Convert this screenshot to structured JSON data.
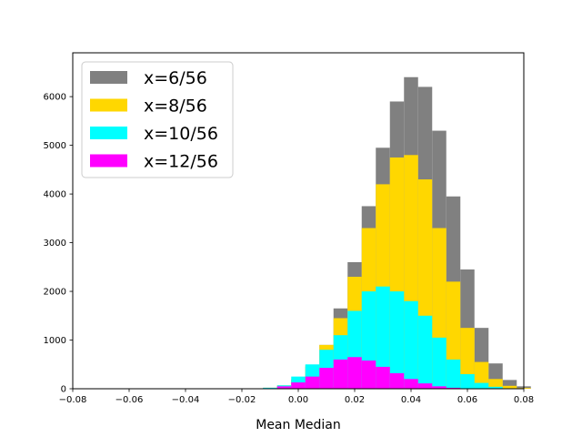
{
  "chart_data": {
    "type": "histogram",
    "title": "",
    "xlabel": "Mean Median",
    "ylabel": "",
    "xlim": [
      -0.08,
      0.08
    ],
    "ylim": [
      0,
      6900
    ],
    "xticks": [
      -0.08,
      -0.06,
      -0.04,
      -0.02,
      0.0,
      0.02,
      0.04,
      0.06,
      0.08
    ],
    "xtick_labels": [
      "−0.08",
      "−0.06",
      "−0.04",
      "−0.02",
      "0.00",
      "0.02",
      "0.04",
      "0.06",
      "0.08"
    ],
    "yticks": [
      0,
      1000,
      2000,
      3000,
      4000,
      5000,
      6000
    ],
    "ytick_labels": [
      "0",
      "1000",
      "2000",
      "3000",
      "4000",
      "5000",
      "6000"
    ],
    "grid": false,
    "legend_position": "top-left",
    "x": [
      -0.015,
      -0.01,
      -0.005,
      0.0,
      0.005,
      0.01,
      0.015,
      0.02,
      0.025,
      0.03,
      0.035,
      0.04,
      0.045,
      0.05,
      0.055,
      0.06,
      0.065,
      0.07,
      0.075,
      0.08
    ],
    "series": [
      {
        "name": "x=6/56",
        "color": "#808080",
        "values": [
          5,
          20,
          60,
          180,
          450,
          900,
          1650,
          2600,
          3750,
          4950,
          5900,
          6400,
          6200,
          5300,
          3950,
          2450,
          1250,
          520,
          180,
          50
        ]
      },
      {
        "name": "x=8/56",
        "color": "#ffd700",
        "values": [
          5,
          20,
          70,
          200,
          480,
          900,
          1450,
          2300,
          3300,
          4200,
          4750,
          4800,
          4300,
          3300,
          2200,
          1250,
          550,
          200,
          60,
          15
        ]
      },
      {
        "name": "x=10/56",
        "color": "#00ffff",
        "values": [
          5,
          20,
          70,
          250,
          500,
          800,
          1100,
          1600,
          2000,
          2100,
          2000,
          1800,
          1500,
          1050,
          600,
          300,
          120,
          40,
          10,
          0
        ]
      },
      {
        "name": "x=12/56",
        "color": "#ff00ff",
        "values": [
          0,
          10,
          50,
          130,
          250,
          430,
          600,
          650,
          580,
          450,
          320,
          200,
          110,
          50,
          20,
          5,
          0,
          0,
          0,
          0
        ]
      }
    ]
  }
}
